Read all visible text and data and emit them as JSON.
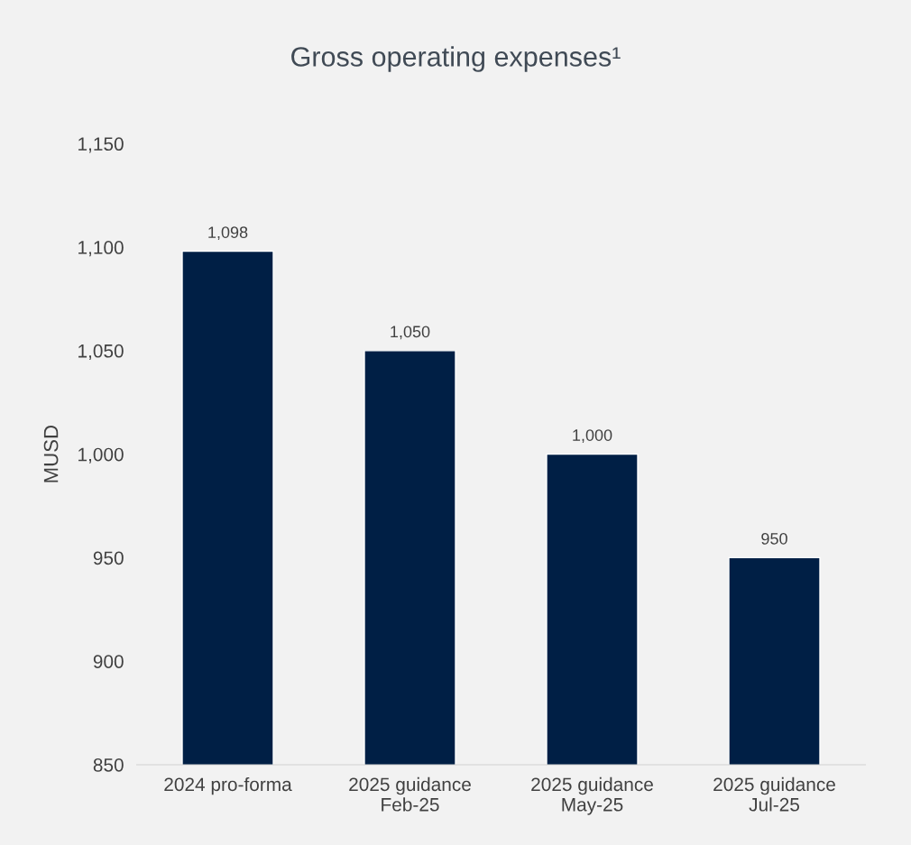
{
  "chart_data": {
    "type": "bar",
    "title": "Gross operating expenses¹",
    "ylabel": "MUSD",
    "categories": [
      "2024 pro-forma",
      "2025 guidance\nFeb-25",
      "2025 guidance\nMay-25",
      "2025 guidance\nJul-25"
    ],
    "values": [
      1098,
      1050,
      1000,
      950
    ],
    "color": "#001f45",
    "ylim": [
      850,
      1150
    ],
    "yticks": [
      850,
      900,
      950,
      {
        "value": 1000,
        "label": "1,000"
      },
      {
        "value": 1050,
        "label": "1,050"
      },
      {
        "value": 1100,
        "label": "1,100"
      },
      {
        "value": 1150,
        "label": "1,150"
      }
    ],
    "data_labels": true,
    "value_labels": [
      "1,098",
      "1,050",
      "1,000",
      "950"
    ],
    "grid": false
  }
}
